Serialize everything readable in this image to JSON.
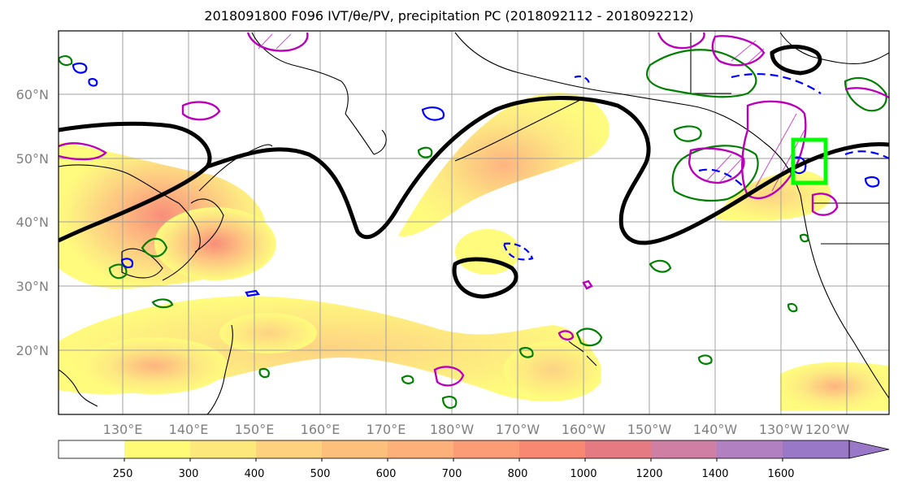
{
  "title": "2018091800 F096 IVT/θe/PV, precipitation PC (2018092112 - 2018092212)",
  "lat_labels": [
    "60°N",
    "50°N",
    "40°N",
    "30°N",
    "20°N"
  ],
  "lon_labels": [
    "130°E",
    "140°E",
    "150°E",
    "160°E",
    "170°E",
    "180°W",
    "170°W",
    "160°W",
    "150°W",
    "140°W",
    "130°W",
    "120°W"
  ],
  "colorbar": {
    "levels": [
      "250",
      "300",
      "400",
      "500",
      "600",
      "700",
      "800",
      "1000",
      "1200",
      "1400",
      "1600"
    ],
    "colors": [
      "#ffffff",
      "#fffb77",
      "#fde87c",
      "#fdd17e",
      "#fdc07c",
      "#fdb07a",
      "#fc9c77",
      "#f88872",
      "#e67a82",
      "#cf7fa3",
      "#b080c0",
      "#9a78c8"
    ]
  },
  "overlay_colors": {
    "theta_e_contour": "#000000",
    "pv_positive": "#bb00bb",
    "pv_negative": "#0000ff",
    "precip_pc": "#008000",
    "highlight_box": "#00ff00"
  }
}
